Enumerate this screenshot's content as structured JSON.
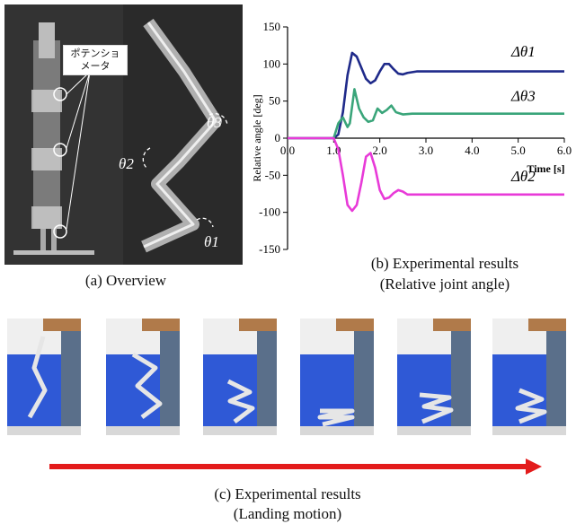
{
  "overview": {
    "potentiometer_label": "ポテンショ\nメータ",
    "theta1": "θ1",
    "theta2": "θ2",
    "theta3": "θ3",
    "caption": "(a) Overview"
  },
  "plot_caption": {
    "line1": "(b) Experimental results",
    "line2": "(Relative joint angle)"
  },
  "landing": {
    "frame_count": 6,
    "caption_line1": "(c) Experimental results",
    "caption_line2": "(Landing motion)"
  },
  "colors": {
    "delta_theta1": "#1f2a8a",
    "delta_theta3": "#3aa57a",
    "delta_theta2": "#e83ad8",
    "arrow": "#e31b1b",
    "blanket": "#2f59d6"
  },
  "chart_data": {
    "type": "line",
    "xlabel": "Time [s]",
    "ylabel": "Relative angle [deg]",
    "xlim": [
      0,
      6.0
    ],
    "ylim": [
      -150,
      150
    ],
    "xticks": [
      "0.0",
      "1.0",
      "2.0",
      "3.0",
      "4.0",
      "5.0",
      "6.0"
    ],
    "yticks": [
      "150",
      "100",
      "50",
      "0",
      "-50",
      "-100",
      "-150"
    ],
    "grid": false,
    "series": [
      {
        "name": "Δθ1",
        "color": "#1f2a8a",
        "x": [
          0,
          1.0,
          1.1,
          1.2,
          1.3,
          1.4,
          1.5,
          1.6,
          1.7,
          1.8,
          1.9,
          2.0,
          2.1,
          2.2,
          2.3,
          2.4,
          2.5,
          2.6,
          2.8,
          3.0,
          3.5,
          4.0,
          5.0,
          6.0
        ],
        "y": [
          0,
          0,
          5,
          35,
          85,
          115,
          110,
          95,
          80,
          74,
          78,
          90,
          100,
          100,
          93,
          87,
          86,
          88,
          90,
          90,
          90,
          90,
          90,
          90
        ]
      },
      {
        "name": "Δθ3",
        "color": "#3aa57a",
        "x": [
          0,
          1.0,
          1.1,
          1.2,
          1.3,
          1.35,
          1.45,
          1.55,
          1.65,
          1.75,
          1.85,
          1.95,
          2.05,
          2.15,
          2.25,
          2.35,
          2.5,
          2.7,
          3.0,
          4.0,
          5.0,
          6.0
        ],
        "y": [
          0,
          0,
          20,
          28,
          15,
          20,
          66,
          40,
          28,
          22,
          24,
          40,
          34,
          38,
          44,
          35,
          32,
          33,
          33,
          33,
          33,
          33
        ]
      },
      {
        "name": "Δθ2",
        "color": "#e83ad8",
        "x": [
          0,
          1.0,
          1.1,
          1.2,
          1.3,
          1.4,
          1.5,
          1.6,
          1.7,
          1.8,
          1.9,
          2.0,
          2.1,
          2.2,
          2.3,
          2.4,
          2.5,
          2.6,
          2.8,
          3.0,
          4.0,
          5.0,
          6.0
        ],
        "y": [
          0,
          0,
          -15,
          -50,
          -90,
          -98,
          -90,
          -60,
          -25,
          -20,
          -40,
          -70,
          -82,
          -80,
          -74,
          -70,
          -72,
          -76,
          -76,
          -76,
          -76,
          -76,
          -76
        ]
      }
    ]
  }
}
